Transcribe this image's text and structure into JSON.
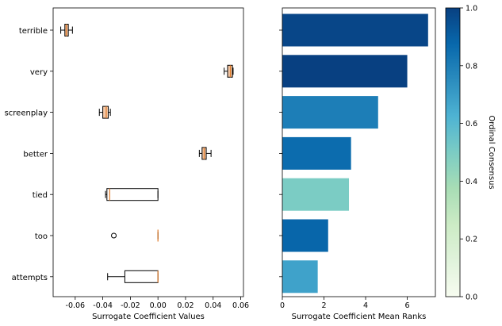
{
  "chart_data": [
    {
      "type": "boxplot",
      "orientation": "horizontal",
      "xlabel": "Surrogate Coefficient Values",
      "xlim": [
        -0.076,
        0.062
      ],
      "xticks": [
        "-0.06",
        "-0.04",
        "-0.02",
        "0.00",
        "0.02",
        "0.04",
        "0.06"
      ],
      "xtick_values": [
        -0.06,
        -0.04,
        -0.02,
        0.0,
        0.02,
        0.04,
        0.06
      ],
      "categories": [
        "terrible",
        "very",
        "screenplay",
        "better",
        "tied",
        "too",
        "attempts"
      ],
      "boxes": [
        {
          "label": "terrible",
          "whislo": -0.0705,
          "q1": -0.0675,
          "med": -0.0665,
          "q3": -0.065,
          "whishi": -0.062,
          "fliers": []
        },
        {
          "label": "very",
          "whislo": 0.048,
          "q1": 0.0505,
          "med": 0.0525,
          "q3": 0.054,
          "whishi": 0.0545,
          "fliers": []
        },
        {
          "label": "screenplay",
          "whislo": -0.0425,
          "q1": -0.04,
          "med": -0.0375,
          "q3": -0.036,
          "whishi": -0.0345,
          "fliers": []
        },
        {
          "label": "better",
          "whislo": 0.03,
          "q1": 0.032,
          "med": 0.0335,
          "q3": 0.035,
          "whishi": 0.0385,
          "fliers": []
        },
        {
          "label": "tied",
          "whislo": -0.038,
          "q1": -0.037,
          "med": -0.035,
          "q3": 0.0,
          "whishi": 0.0,
          "fliers": []
        },
        {
          "label": "too",
          "whislo": 0.0,
          "q1": 0.0,
          "med": 0.0,
          "q3": 0.0,
          "whishi": 0.0,
          "fliers": [
            -0.032
          ]
        },
        {
          "label": "attempts",
          "whislo": -0.0365,
          "q1": -0.024,
          "med": 0.0,
          "q3": 0.0,
          "whishi": 0.0,
          "fliers": []
        }
      ],
      "colors": {
        "box_fill": "#f4c9a8",
        "median": "#e07b2a",
        "line": "#000000"
      }
    },
    {
      "type": "bar",
      "orientation": "horizontal",
      "xlabel": "Surrogate Coefficient Mean Ranks",
      "xlim": [
        0,
        7.35
      ],
      "xticks": [
        "0",
        "2",
        "4",
        "6"
      ],
      "xtick_values": [
        0,
        2,
        4,
        6
      ],
      "categories": [
        "terrible",
        "very",
        "screenplay",
        "better",
        "tied",
        "too",
        "attempts"
      ],
      "values": [
        7.0,
        6.0,
        4.6,
        3.3,
        3.2,
        2.2,
        1.7
      ],
      "consensus": [
        0.98,
        1.0,
        0.8,
        0.86,
        0.5,
        0.88,
        0.68
      ]
    }
  ],
  "colorbar": {
    "label": "Ordinal Consensus",
    "ticks": [
      "0.0",
      "0.2",
      "0.4",
      "0.6",
      "0.8",
      "1.0"
    ],
    "tick_values": [
      0.0,
      0.2,
      0.4,
      0.6,
      0.8,
      1.0
    ],
    "colormap": "GnBu",
    "stops": [
      "#f7fcf0",
      "#e0f3db",
      "#ccebc5",
      "#a8ddb5",
      "#7bccc4",
      "#4eb3d3",
      "#2b8cbe",
      "#0868ac",
      "#084081"
    ]
  }
}
